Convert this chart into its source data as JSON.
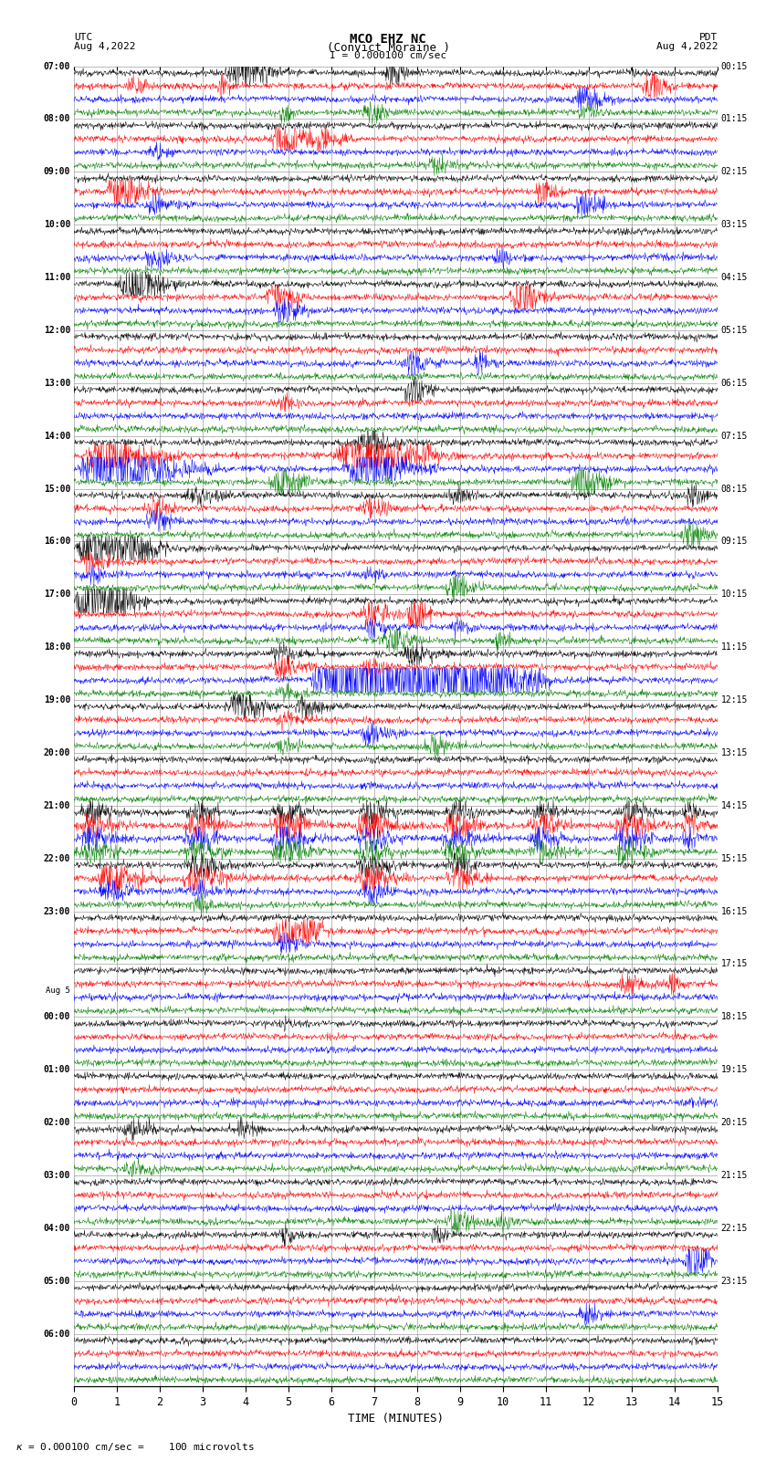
{
  "title_line1": "MCO EHZ NC",
  "title_line2": "(Convict Moraine )",
  "scale_label": "I = 0.000100 cm/sec",
  "utc_label": "UTC",
  "utc_date": "Aug 4,2022",
  "pdt_label": "PDT",
  "pdt_date": "Aug 4,2022",
  "bottom_note": "= 0.000100 cm/sec =    100 microvolts",
  "xlabel": "TIME (MINUTES)",
  "utc_times": [
    "07:00",
    "08:00",
    "09:00",
    "10:00",
    "11:00",
    "12:00",
    "13:00",
    "14:00",
    "15:00",
    "16:00",
    "17:00",
    "18:00",
    "19:00",
    "20:00",
    "21:00",
    "22:00",
    "23:00",
    "Aug 5",
    "00:00",
    "01:00",
    "02:00",
    "03:00",
    "04:00",
    "05:00",
    "06:00"
  ],
  "pdt_times": [
    "00:15",
    "01:15",
    "02:15",
    "03:15",
    "04:15",
    "05:15",
    "06:15",
    "07:15",
    "08:15",
    "09:15",
    "10:15",
    "11:15",
    "12:15",
    "13:15",
    "14:15",
    "15:15",
    "16:15",
    "17:15",
    "18:15",
    "19:15",
    "20:15",
    "21:15",
    "22:15",
    "23:15"
  ],
  "num_rows": 25,
  "traces_per_row": 4,
  "colors": [
    "black",
    "red",
    "blue",
    "green"
  ],
  "bg_color": "white",
  "grid_color": "#888888",
  "text_color": "black",
  "minutes": 15,
  "noise_levels": [
    0.022,
    0.022,
    0.022,
    0.022,
    0.022,
    0.022,
    0.022,
    0.022,
    0.022,
    0.025,
    0.025,
    0.025,
    0.025,
    0.08,
    0.08,
    0.05,
    0.03,
    0.03,
    0.03,
    0.03,
    0.03,
    0.03,
    0.03,
    0.03,
    0.03
  ],
  "figsize": [
    8.5,
    16.13
  ],
  "dpi": 100
}
